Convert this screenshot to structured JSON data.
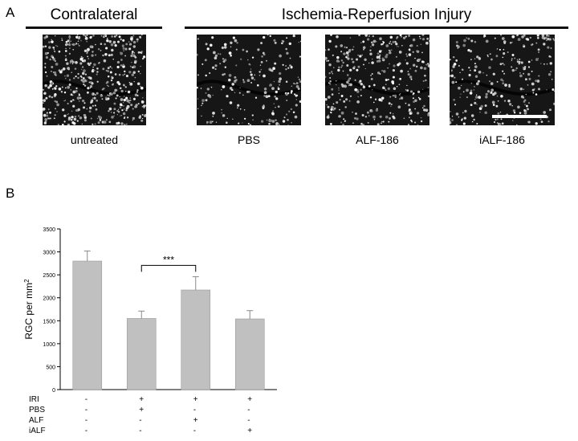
{
  "panel_a": {
    "letter": "A",
    "groups": [
      {
        "title": "Contralateral"
      },
      {
        "title": "Ischemia-Reperfusion Injury"
      }
    ],
    "images": [
      {
        "caption": "untreated",
        "density": 1.0
      },
      {
        "caption": "PBS",
        "density": 0.45
      },
      {
        "caption": "ALF-186",
        "density": 0.7
      },
      {
        "caption": "iALF-186",
        "density": 0.55
      }
    ]
  },
  "panel_b": {
    "letter": "B",
    "significance": "***",
    "table": {
      "rows": [
        {
          "label": "IRI",
          "marks": [
            "-",
            "+",
            "+",
            "+"
          ]
        },
        {
          "label": "PBS",
          "marks": [
            "-",
            "+",
            "-",
            "-"
          ]
        },
        {
          "label": "ALF",
          "marks": [
            "-",
            "-",
            "+",
            "-"
          ]
        },
        {
          "label": "iALF",
          "marks": [
            "-",
            "-",
            "-",
            "+"
          ]
        }
      ]
    }
  },
  "chart_data": {
    "type": "bar",
    "categories": [
      "untreated",
      "PBS",
      "ALF-186",
      "iALF-186"
    ],
    "values": [
      2800,
      1550,
      2170,
      1540
    ],
    "errors": [
      220,
      160,
      290,
      180
    ],
    "ylabel": "RGC per mm",
    "ylabel_sup": "2",
    "ylim": [
      0,
      3500
    ],
    "yticks": [
      0,
      500,
      1000,
      1500,
      2000,
      2500,
      3000,
      3500
    ],
    "bar_color": "#c0c0c0",
    "significance_between": [
      1,
      2
    ]
  }
}
